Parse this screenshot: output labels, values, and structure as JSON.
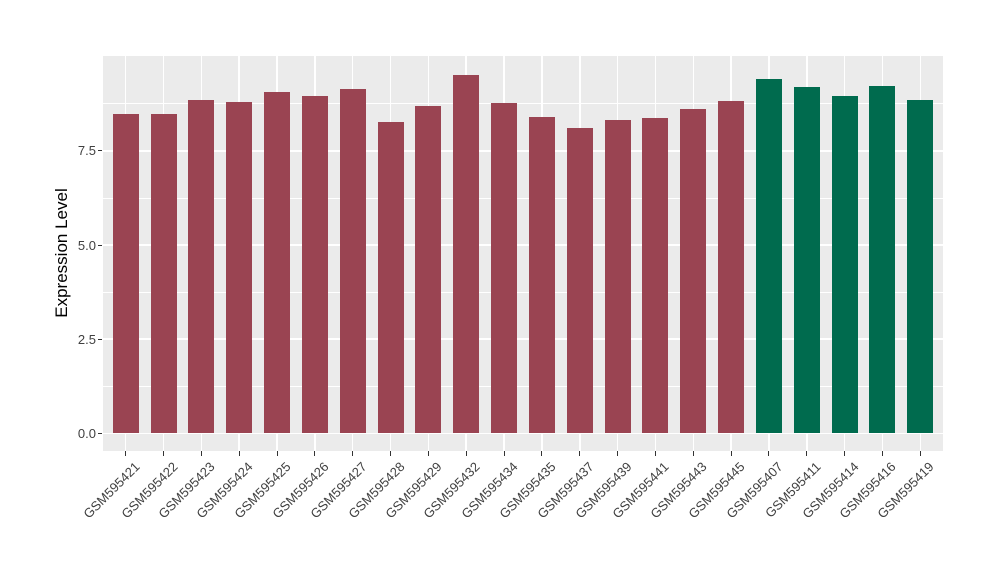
{
  "figure": {
    "background_color": "#FFFFFF",
    "panel_background_color": "#EBEBEB",
    "gridline_color": "#FFFFFF",
    "tick_mark_color": "#333333",
    "axis_text_color": "#404040"
  },
  "chart_data": {
    "type": "bar",
    "title": "",
    "xlabel": "",
    "ylabel": "Expression Level",
    "categories": [
      "GSM595421",
      "GSM595422",
      "GSM595423",
      "GSM595424",
      "GSM595425",
      "GSM595426",
      "GSM595427",
      "GSM595428",
      "GSM595429",
      "GSM595432",
      "GSM595434",
      "GSM595435",
      "GSM595437",
      "GSM595439",
      "GSM595441",
      "GSM595443",
      "GSM595445",
      "GSM595407",
      "GSM595411",
      "GSM595414",
      "GSM595416",
      "GSM595419"
    ],
    "values": [
      8.48,
      8.48,
      8.85,
      8.8,
      9.07,
      8.97,
      9.15,
      8.27,
      8.69,
      9.52,
      8.77,
      8.4,
      8.1,
      8.32,
      8.38,
      8.6,
      8.83,
      9.41,
      9.21,
      8.97,
      9.22,
      8.85
    ],
    "groups": [
      "A",
      "A",
      "A",
      "A",
      "A",
      "A",
      "A",
      "A",
      "A",
      "A",
      "A",
      "A",
      "A",
      "A",
      "A",
      "A",
      "A",
      "B",
      "B",
      "B",
      "B",
      "B"
    ],
    "group_colors": {
      "A": "#9A4452",
      "B": "#006B4E"
    },
    "yticks": [
      0.0,
      2.5,
      5.0,
      7.5
    ],
    "ytick_labels": [
      "0.0",
      "2.5",
      "5.0",
      "7.5"
    ],
    "yminor": [
      1.25,
      3.75,
      6.25,
      8.75
    ],
    "ylim": [
      -0.47,
      10.02
    ],
    "grid": "white major+minor horizontal, white vertical at category centers",
    "legend_position": "none",
    "x_label_angle": 45
  }
}
